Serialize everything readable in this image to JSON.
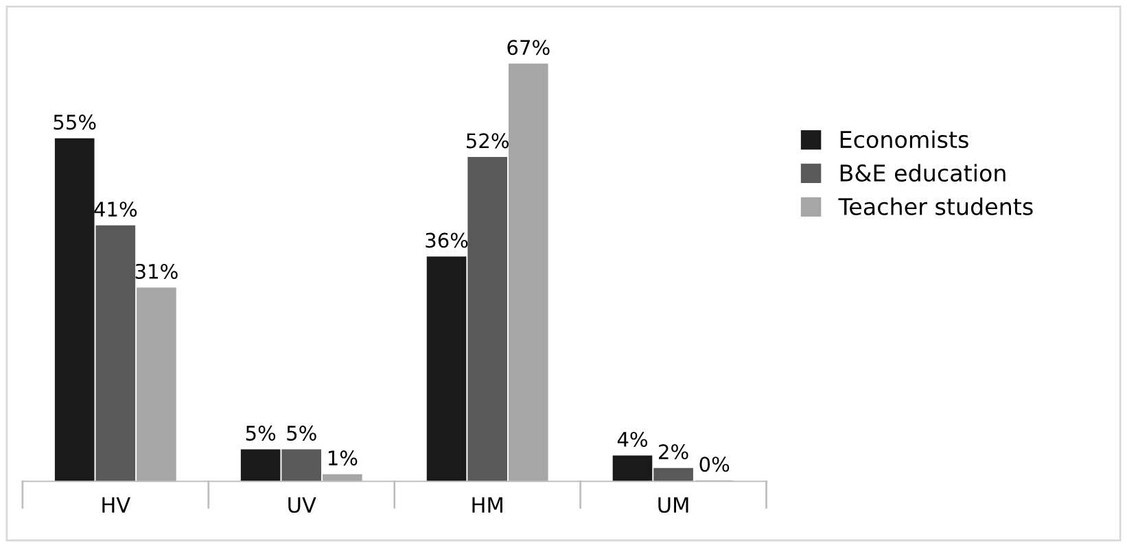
{
  "chart_data": {
    "type": "bar",
    "categories": [
      "HV",
      "UV",
      "HM",
      "UM"
    ],
    "series": [
      {
        "name": "Economists",
        "color": "#1a1a1a",
        "values": [
          55,
          5,
          36,
          4
        ],
        "value_labels": [
          "55%",
          "5%",
          "36%",
          "4%"
        ]
      },
      {
        "name": "B&E education",
        "color": "#595959",
        "values": [
          41,
          5,
          52,
          2
        ],
        "value_labels": [
          "41%",
          "5%",
          "52%",
          "2%"
        ]
      },
      {
        "name": "Teacher students",
        "color": "#a6a6a6",
        "values": [
          31,
          1,
          67,
          0
        ],
        "value_labels": [
          "31%",
          "1%",
          "67%",
          "0%"
        ]
      }
    ],
    "legend": "right",
    "grid": false
  }
}
